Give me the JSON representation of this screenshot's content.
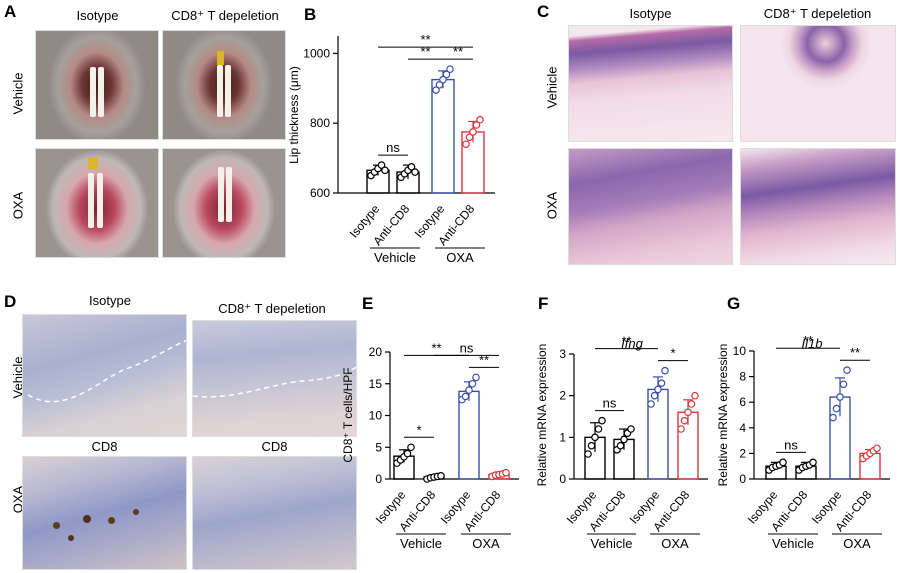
{
  "panels": {
    "A": {
      "letter": "A",
      "col_labels": [
        "Isotype",
        "CD8⁺ T depeletion"
      ],
      "row_labels": [
        "Vehicle",
        "OXA"
      ]
    },
    "C": {
      "letter": "C",
      "col_labels": [
        "Isotype",
        "CD8⁺ T depeletion"
      ],
      "row_labels": [
        "Vehicle",
        "OXA"
      ]
    },
    "D": {
      "letter": "D",
      "col_labels": [
        "Isotype",
        "CD8⁺ T depeletion"
      ],
      "row_labels": [
        "Vehicle",
        "OXA"
      ],
      "stain_labels": [
        "CD8",
        "CD8"
      ]
    }
  },
  "colors": {
    "isotype_vehicle": "#000000",
    "anti_vehicle": "#000000",
    "isotype_oxa": "#3a4fa6",
    "anti_oxa": "#d9363e",
    "he_pink": "#e6b6cf",
    "ihc_blue": "#bcc1d6"
  },
  "chart_data": [
    {
      "id": "B",
      "letter": "B",
      "type": "bar",
      "ylabel": "Lip thickness (μm)",
      "ylim": [
        600,
        1050
      ],
      "yticks": [
        600,
        800,
        1000
      ],
      "categories": [
        "Isotype",
        "Anti-CD8",
        "Isotype",
        "Anti-CD8"
      ],
      "groups": [
        "Vehicle",
        "OXA"
      ],
      "values": [
        665,
        660,
        925,
        775
      ],
      "errors": [
        15,
        20,
        25,
        30
      ],
      "points": [
        [
          650,
          660,
          670,
          680,
          665
        ],
        [
          645,
          655,
          665,
          675,
          660
        ],
        [
          895,
          910,
          925,
          940,
          955
        ],
        [
          740,
          760,
          775,
          795,
          810
        ]
      ],
      "significance": [
        {
          "from": 0,
          "to": 1,
          "label": "ns"
        },
        {
          "from": 1,
          "to": 2,
          "label": "**"
        },
        {
          "from": 2,
          "to": 3,
          "label": "**"
        },
        {
          "from": 0,
          "to": 3,
          "label": "**"
        }
      ]
    },
    {
      "id": "E",
      "letter": "E",
      "type": "bar",
      "ylabel": "CD8⁺ T cells/HPF",
      "ylim": [
        0,
        20
      ],
      "yticks": [
        0,
        5,
        10,
        15,
        20
      ],
      "categories": [
        "Isotype",
        "Anti-CD8",
        "Isotype",
        "Anti-CD8"
      ],
      "groups": [
        "Vehicle",
        "OXA"
      ],
      "values": [
        3.6,
        0.3,
        13.8,
        0.7
      ],
      "errors": [
        1.0,
        0.3,
        1.5,
        0.4
      ],
      "points": [
        [
          2.5,
          3.0,
          3.5,
          4.0,
          5.0
        ],
        [
          0.0,
          0.2,
          0.3,
          0.4,
          0.5
        ],
        [
          12.5,
          13.0,
          14.0,
          15.0,
          16.0
        ],
        [
          0.4,
          0.6,
          0.7,
          0.8,
          1.0
        ]
      ],
      "significance": [
        {
          "from": 0,
          "to": 1,
          "label": "*"
        },
        {
          "from": 0,
          "to": 2,
          "label": "**"
        },
        {
          "from": 2,
          "to": 3,
          "label": "**"
        },
        {
          "from": 1,
          "to": 3,
          "label": "ns"
        }
      ]
    },
    {
      "id": "F",
      "letter": "F",
      "type": "bar",
      "title": "Ifng",
      "ylabel": "Relative mRNA expression",
      "ylim": [
        0,
        3
      ],
      "yticks": [
        0,
        1,
        2,
        3
      ],
      "categories": [
        "Isotype",
        "Anti-CD8",
        "Isotype",
        "Anti-CD8"
      ],
      "groups": [
        "Vehicle",
        "OXA"
      ],
      "values": [
        1.0,
        0.95,
        2.15,
        1.6
      ],
      "errors": [
        0.35,
        0.25,
        0.3,
        0.3
      ],
      "points": [
        [
          0.6,
          0.8,
          1.0,
          1.2,
          1.4
        ],
        [
          0.7,
          0.8,
          0.95,
          1.1,
          1.2
        ],
        [
          1.8,
          2.0,
          2.15,
          2.3,
          2.6
        ],
        [
          1.2,
          1.4,
          1.6,
          1.8,
          2.0
        ]
      ],
      "significance": [
        {
          "from": 0,
          "to": 1,
          "label": "ns"
        },
        {
          "from": 0,
          "to": 2,
          "label": "**"
        },
        {
          "from": 2,
          "to": 3,
          "label": "*"
        }
      ]
    },
    {
      "id": "G",
      "letter": "G",
      "type": "bar",
      "title": "Il1b",
      "ylabel": "Relative mRNA expression",
      "ylim": [
        0,
        10
      ],
      "yticks": [
        0,
        2,
        4,
        6,
        8,
        10
      ],
      "categories": [
        "Isotype",
        "Anti-CD8",
        "Isotype",
        "Anti-CD8"
      ],
      "groups": [
        "Vehicle",
        "OXA"
      ],
      "values": [
        1.0,
        1.0,
        6.4,
        2.0
      ],
      "errors": [
        0.3,
        0.3,
        1.5,
        0.3
      ],
      "points": [
        [
          0.7,
          0.9,
          1.0,
          1.1,
          1.3
        ],
        [
          0.7,
          0.9,
          1.0,
          1.1,
          1.3
        ],
        [
          4.8,
          5.5,
          6.4,
          7.4,
          8.5
        ],
        [
          1.6,
          1.8,
          2.0,
          2.2,
          2.4
        ]
      ],
      "significance": [
        {
          "from": 0,
          "to": 1,
          "label": "ns"
        },
        {
          "from": 0,
          "to": 2,
          "label": "**"
        },
        {
          "from": 2,
          "to": 3,
          "label": "**"
        }
      ]
    }
  ]
}
